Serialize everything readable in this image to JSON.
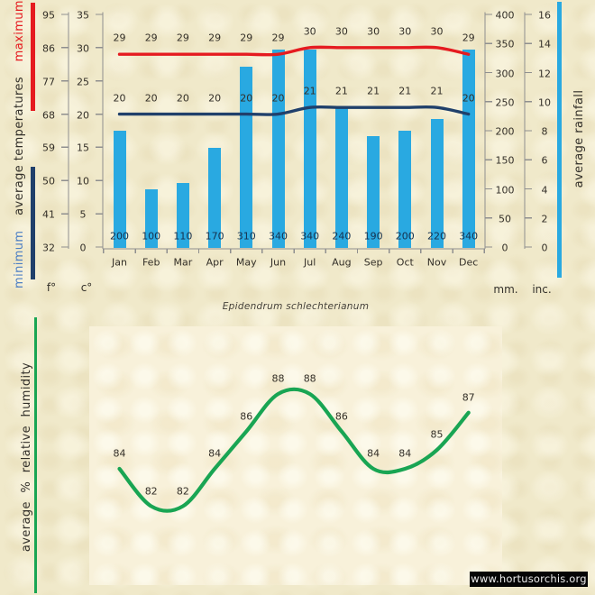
{
  "title": "Epidendrum schlechterianum",
  "watermark": "www.hortusorchis.org",
  "side_labels": {
    "temp_min": "minimum",
    "temp_mid": "average temperatures",
    "temp_max": "maximum",
    "rainfall": "average rainfall",
    "humidity": "average % relative humidity"
  },
  "unit_labels": {
    "fahrenheit": "f°",
    "celsius": "c°",
    "mm": "mm.",
    "inches": "inc."
  },
  "colors": {
    "background": "#f0e9ca",
    "plot_background": "#f8f1da",
    "bar_blue": "#29a9e1",
    "max_red": "#e51b20",
    "min_navy": "#20406b",
    "humidity_green": "#19a553",
    "axis_gray": "#8f8f8f",
    "text_dark": "#332f28",
    "rain_label_navy": "#16324f",
    "minimum_word_blue": "#4d7fc4"
  },
  "chart_data": [
    {
      "type": "bar",
      "title": "climate: average temperatures and rainfall by month",
      "categories": [
        "Jan",
        "Feb",
        "Mar",
        "Apr",
        "May",
        "Jun",
        "Jul",
        "Aug",
        "Sep",
        "Oct",
        "Nov",
        "Dec"
      ],
      "series": [
        {
          "name": "maximum temperature",
          "type": "line",
          "unit": "°C",
          "color": "#e51b20",
          "values": [
            29,
            29,
            29,
            29,
            29,
            29,
            30,
            30,
            30,
            30,
            30,
            29
          ]
        },
        {
          "name": "minimum temperature",
          "type": "line",
          "unit": "°C",
          "color": "#20406b",
          "values": [
            20,
            20,
            20,
            20,
            20,
            20,
            21,
            21,
            21,
            21,
            21,
            20
          ]
        },
        {
          "name": "average rainfall",
          "type": "bar",
          "unit": "mm",
          "color": "#29a9e1",
          "values": [
            200,
            100,
            110,
            170,
            310,
            340,
            340,
            240,
            190,
            200,
            220,
            340
          ]
        }
      ],
      "axes": {
        "celsius": {
          "label": "c°",
          "ticks": [
            0,
            5,
            10,
            15,
            20,
            25,
            30,
            35
          ],
          "range": [
            0,
            35
          ]
        },
        "fahrenheit": {
          "label": "f°",
          "ticks": [
            32,
            41,
            50,
            59,
            68,
            77,
            86,
            95
          ],
          "range": [
            32,
            95
          ]
        },
        "mm": {
          "label": "mm.",
          "ticks": [
            0,
            50,
            100,
            150,
            200,
            250,
            300,
            350,
            400
          ],
          "range": [
            0,
            400
          ]
        },
        "inches": {
          "label": "inc.",
          "ticks": [
            0,
            2,
            4,
            6,
            8,
            10,
            12,
            14,
            16
          ],
          "range": [
            0,
            16
          ]
        }
      },
      "grid": false,
      "legend_position": "left-and-right vertical side labels"
    },
    {
      "type": "line",
      "title": "Epidendrum schlechterianum",
      "categories": [
        "Jan",
        "Feb",
        "Mar",
        "Apr",
        "May",
        "Jun",
        "Jul",
        "Aug",
        "Sep",
        "Oct",
        "Nov",
        "Dec"
      ],
      "series": [
        {
          "name": "average % relative humidity",
          "color": "#19a553",
          "values": [
            84,
            82,
            82,
            84,
            86,
            88,
            88,
            86,
            84,
            84,
            85,
            87
          ]
        }
      ],
      "grid": false,
      "axes_hidden": true
    }
  ]
}
